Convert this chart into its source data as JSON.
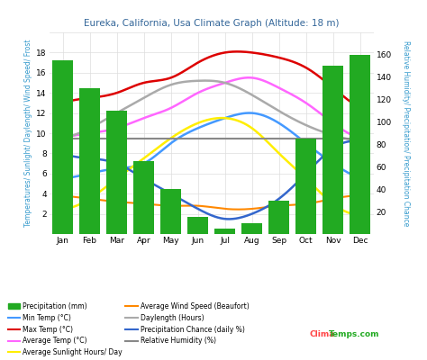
{
  "title": "Eureka, California, Usa Climate Graph (Altitude: 18 m)",
  "months": [
    "Jan",
    "Feb",
    "Mar",
    "Apr",
    "May",
    "Jun",
    "Jul",
    "Aug",
    "Sep",
    "Oct",
    "Nov",
    "Dec"
  ],
  "precipitation_mm": [
    155,
    130,
    110,
    65,
    40,
    15,
    5,
    10,
    30,
    85,
    150,
    160
  ],
  "max_temp": [
    13.0,
    13.5,
    14.0,
    15.0,
    15.5,
    17.0,
    18.0,
    18.0,
    17.5,
    16.5,
    14.5,
    12.5
  ],
  "min_temp": [
    5.5,
    6.0,
    6.5,
    7.0,
    9.0,
    10.5,
    11.5,
    12.0,
    11.0,
    9.0,
    7.0,
    5.5
  ],
  "avg_temp": [
    9.5,
    10.0,
    10.5,
    11.5,
    12.5,
    14.0,
    15.0,
    15.5,
    14.5,
    13.0,
    11.0,
    9.5
  ],
  "sunlight_hours": [
    2.5,
    3.5,
    5.5,
    7.5,
    9.5,
    11.0,
    11.5,
    10.5,
    8.0,
    5.5,
    3.0,
    2.0
  ],
  "wind_speed": [
    3.8,
    3.5,
    3.2,
    3.0,
    2.8,
    2.8,
    2.5,
    2.5,
    2.8,
    3.0,
    3.5,
    3.8
  ],
  "daylength": [
    9.5,
    10.5,
    12.0,
    13.5,
    14.8,
    15.2,
    15.0,
    13.8,
    12.2,
    10.8,
    9.8,
    9.2
  ],
  "precip_chance": [
    8.0,
    7.5,
    7.0,
    5.5,
    4.0,
    2.5,
    1.5,
    2.0,
    3.5,
    6.0,
    8.5,
    9.0
  ],
  "relative_humidity": [
    9.5,
    9.5,
    9.5,
    9.5,
    9.5,
    9.5,
    9.5,
    9.5,
    9.5,
    9.5,
    9.5,
    9.5
  ],
  "bar_color": "#22aa22",
  "max_temp_color": "#dd0000",
  "min_temp_color": "#4499ff",
  "avg_temp_color": "#ff66ff",
  "sunlight_color": "#ffee00",
  "wind_color": "#ff8800",
  "daylength_color": "#aaaaaa",
  "precip_chance_color": "#3366cc",
  "humidity_color": "#888888",
  "ylim_left": [
    0,
    20
  ],
  "ylim_right": [
    0,
    180
  ],
  "yticks_left": [
    2,
    4,
    6,
    8,
    10,
    12,
    14,
    16,
    18
  ],
  "yticks_right": [
    20,
    40,
    60,
    80,
    100,
    120,
    140,
    160
  ],
  "background_color": "#ffffff",
  "grid_color": "#dddddd",
  "title_color": "#336699",
  "watermark_color_clima": "#ff4444",
  "watermark_color_temps": "#22aa22",
  "left_axis_label": "Temperatures/ Sunlight/ Daylength/ Wind Speed/ Frost",
  "right_axis_label": "Relative Humidity/ Precipitation/ Precipitation Chance"
}
